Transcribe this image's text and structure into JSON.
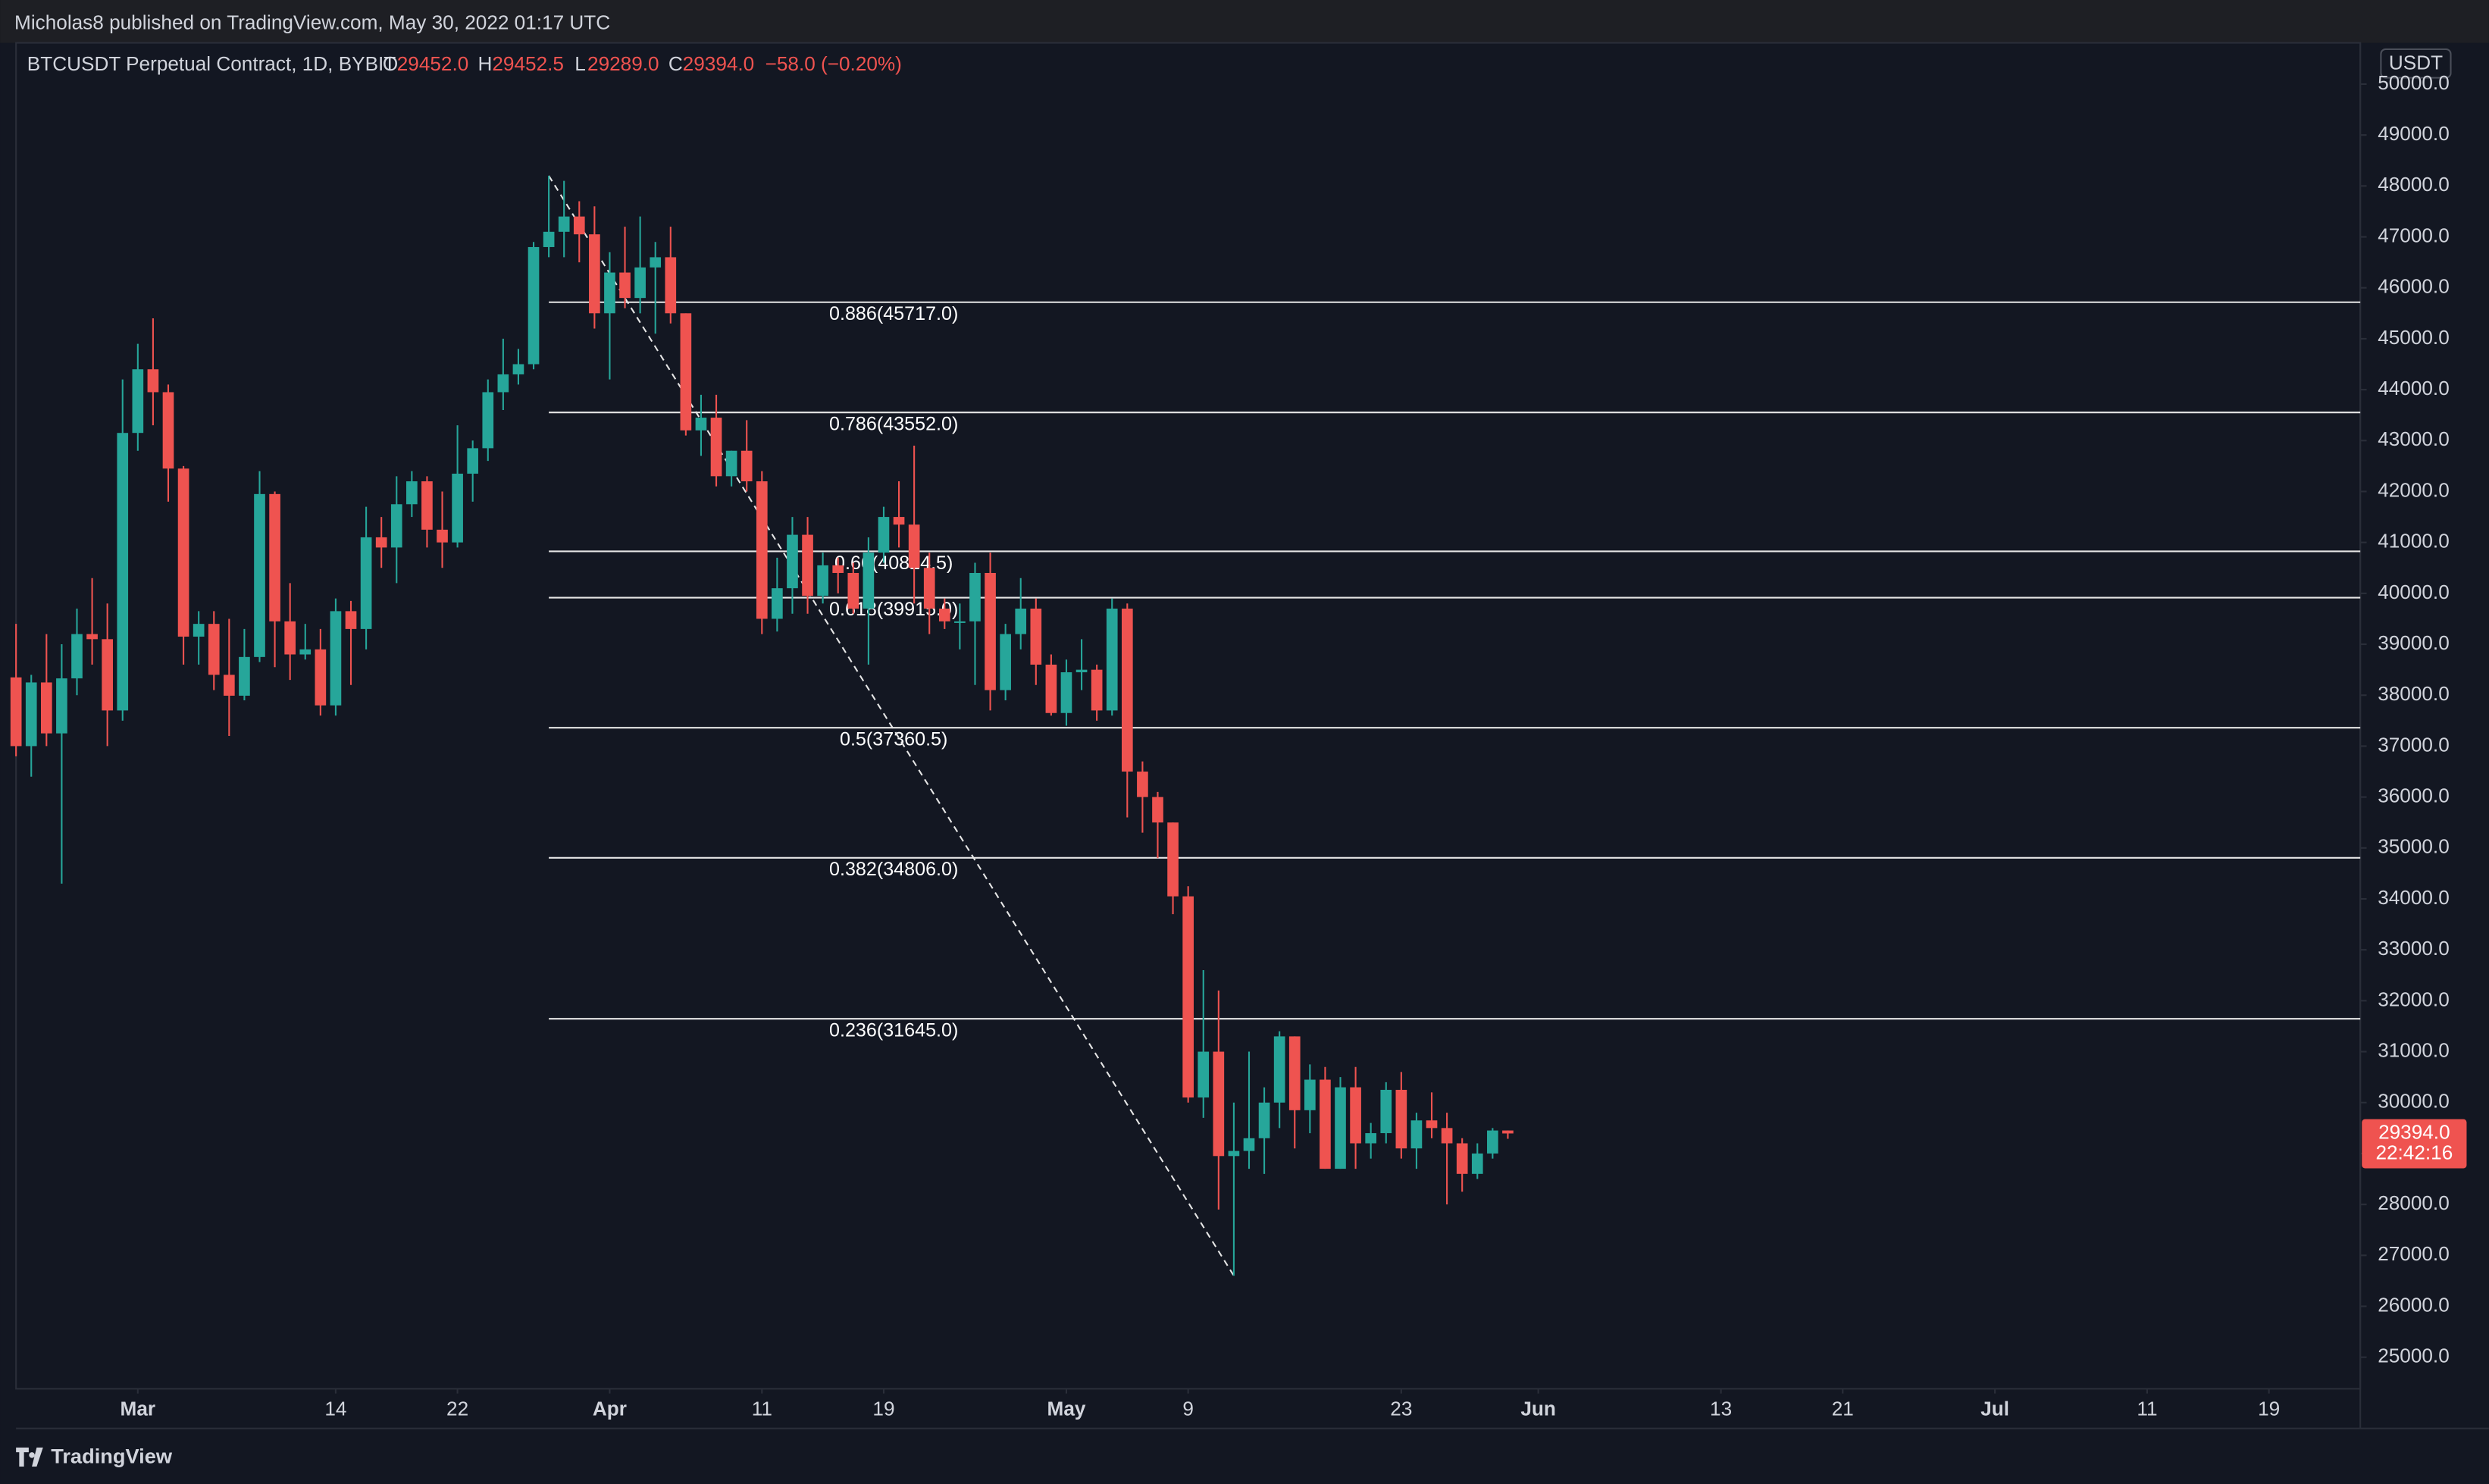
{
  "header": {
    "publisher": "Micholas8 published on TradingView.com, May 30, 2022 01:17 UTC"
  },
  "legend": {
    "symbol": "BTCUSDT Perpetual Contract, 1D, BYBIT",
    "open": {
      "label": "O",
      "value": "29452.0"
    },
    "high": {
      "label": "H",
      "value": "29452.5"
    },
    "low": {
      "label": "L",
      "value": "29289.0"
    },
    "close": {
      "label": "C",
      "value": "29394.0"
    },
    "change": "−58.0 (−0.20%)"
  },
  "footer": {
    "brand": "TradingView"
  },
  "chart_data": {
    "type": "candlestick",
    "currency": "USDT",
    "up_color": "#26a69a",
    "down_color": "#ef5350",
    "grid": false,
    "x": [
      "2022-02-21",
      "2022-02-22",
      "2022-02-23",
      "2022-02-24",
      "2022-02-25",
      "2022-02-26",
      "2022-02-27",
      "2022-02-28",
      "2022-03-01",
      "2022-03-02",
      "2022-03-03",
      "2022-03-04",
      "2022-03-05",
      "2022-03-06",
      "2022-03-07",
      "2022-03-08",
      "2022-03-09",
      "2022-03-10",
      "2022-03-11",
      "2022-03-12",
      "2022-03-13",
      "2022-03-14",
      "2022-03-15",
      "2022-03-16",
      "2022-03-17",
      "2022-03-18",
      "2022-03-19",
      "2022-03-20",
      "2022-03-21",
      "2022-03-22",
      "2022-03-23",
      "2022-03-24",
      "2022-03-25",
      "2022-03-26",
      "2022-03-27",
      "2022-03-28",
      "2022-03-29",
      "2022-03-30",
      "2022-03-31",
      "2022-04-01",
      "2022-04-02",
      "2022-04-03",
      "2022-04-04",
      "2022-04-05",
      "2022-04-06",
      "2022-04-07",
      "2022-04-08",
      "2022-04-09",
      "2022-04-10",
      "2022-04-11",
      "2022-04-12",
      "2022-04-13",
      "2022-04-14",
      "2022-04-15",
      "2022-04-16",
      "2022-04-17",
      "2022-04-18",
      "2022-04-19",
      "2022-04-20",
      "2022-04-21",
      "2022-04-22",
      "2022-04-23",
      "2022-04-24",
      "2022-04-25",
      "2022-04-26",
      "2022-04-27",
      "2022-04-28",
      "2022-04-29",
      "2022-04-30",
      "2022-05-01",
      "2022-05-02",
      "2022-05-03",
      "2022-05-04",
      "2022-05-05",
      "2022-05-06",
      "2022-05-07",
      "2022-05-08",
      "2022-05-09",
      "2022-05-10",
      "2022-05-11",
      "2022-05-12",
      "2022-05-13",
      "2022-05-14",
      "2022-05-15",
      "2022-05-16",
      "2022-05-17",
      "2022-05-18",
      "2022-05-19",
      "2022-05-20",
      "2022-05-21",
      "2022-05-22",
      "2022-05-23",
      "2022-05-24",
      "2022-05-25",
      "2022-05-26",
      "2022-05-27",
      "2022-05-28",
      "2022-05-29",
      "2022-05-30"
    ],
    "open": [
      38350,
      37000,
      38250,
      37250,
      38330,
      39200,
      39100,
      37700,
      43150,
      44400,
      43950,
      42450,
      39150,
      39400,
      38400,
      37990,
      38750,
      41950,
      39450,
      38800,
      38900,
      37800,
      39650,
      39300,
      41100,
      40900,
      41750,
      42200,
      41250,
      41000,
      42350,
      42850,
      43950,
      44300,
      44500,
      46800,
      47100,
      47400,
      47050,
      45500,
      46300,
      45800,
      46400,
      46600,
      45500,
      43200,
      43450,
      42300,
      42800,
      42200,
      39500,
      40100,
      41150,
      39950,
      40550,
      40400,
      39700,
      40800,
      41500,
      41350,
      40500,
      39700,
      39450,
      39450,
      40400,
      38100,
      39200,
      39700,
      38600,
      37650,
      38450,
      38500,
      37700,
      39700,
      36500,
      36000,
      35500,
      34050,
      30100,
      31000,
      28950,
      29050,
      29300,
      30000,
      31300,
      29850,
      30450,
      28700,
      30300,
      29200,
      29400,
      30250,
      29100,
      29650,
      29500,
      29200,
      28600,
      29000,
      29452
    ],
    "high": [
      39400,
      38400,
      39200,
      39000,
      39700,
      40300,
      39800,
      44200,
      44900,
      45400,
      44100,
      42500,
      39650,
      39650,
      39500,
      39300,
      42400,
      42000,
      40200,
      39400,
      39300,
      39900,
      39850,
      41700,
      41500,
      42300,
      42400,
      42300,
      42000,
      43300,
      43000,
      44200,
      45000,
      44800,
      46900,
      48200,
      48100,
      47700,
      47600,
      46700,
      47200,
      47400,
      46900,
      47200,
      45500,
      43900,
      43900,
      42800,
      43400,
      42400,
      40700,
      41500,
      41500,
      40800,
      40700,
      40600,
      41100,
      41700,
      42200,
      42900,
      40800,
      39900,
      39800,
      40600,
      40800,
      39400,
      40300,
      39900,
      38800,
      38700,
      39100,
      38600,
      39900,
      39800,
      36700,
      36100,
      35500,
      34250,
      32600,
      32200,
      30000,
      31000,
      30300,
      31400,
      31300,
      30750,
      30700,
      30500,
      30700,
      29600,
      30400,
      30600,
      29800,
      30200,
      29800,
      29300,
      29200,
      29500,
      29452.5
    ],
    "low": [
      36800,
      36400,
      37000,
      34300,
      38000,
      38600,
      37000,
      37500,
      42800,
      43300,
      41800,
      38600,
      38600,
      38100,
      37200,
      37900,
      38650,
      38550,
      38300,
      38700,
      37600,
      37600,
      38200,
      38900,
      40500,
      40200,
      41500,
      40900,
      40500,
      40900,
      41800,
      42600,
      43600,
      44100,
      44400,
      46600,
      46600,
      46500,
      45200,
      44200,
      45600,
      45500,
      45100,
      45300,
      43100,
      42700,
      42100,
      42100,
      42000,
      39200,
      39250,
      39600,
      39600,
      39800,
      40000,
      39600,
      38600,
      40600,
      40900,
      39800,
      39200,
      39300,
      38900,
      38200,
      37700,
      37900,
      38900,
      38200,
      37600,
      37400,
      38100,
      37500,
      37600,
      35600,
      35300,
      34800,
      33700,
      30000,
      29700,
      27900,
      26600,
      28700,
      28600,
      29500,
      29100,
      29400,
      28700,
      28700,
      28700,
      28900,
      29200,
      28900,
      28700,
      29300,
      28000,
      28250,
      28500,
      28900,
      29289
    ],
    "close": [
      37000,
      38250,
      37250,
      38330,
      39200,
      39100,
      37700,
      43150,
      44400,
      43950,
      42450,
      39150,
      39400,
      38400,
      37990,
      38750,
      41950,
      39450,
      38800,
      38900,
      37800,
      39650,
      39300,
      41100,
      40900,
      41750,
      42200,
      41250,
      41000,
      42350,
      42850,
      43950,
      44300,
      44500,
      46800,
      47100,
      47400,
      47050,
      45500,
      46300,
      45800,
      46400,
      46600,
      45500,
      43200,
      43450,
      42300,
      42800,
      42200,
      39500,
      40100,
      41150,
      39950,
      40550,
      40400,
      39700,
      40800,
      41500,
      41350,
      40500,
      39700,
      39450,
      39450,
      40400,
      38100,
      39200,
      39700,
      38600,
      37650,
      38450,
      38500,
      37700,
      39700,
      36500,
      36000,
      35500,
      34050,
      30100,
      31000,
      28950,
      29050,
      29300,
      30000,
      31300,
      29850,
      30450,
      28700,
      30300,
      29200,
      29400,
      30250,
      29100,
      29650,
      29500,
      29200,
      28600,
      29000,
      29452,
      29394
    ],
    "xlim": [
      "2022-02-21",
      "2022-07-25"
    ],
    "xticks": [
      {
        "value": "2022-03-01",
        "label": "Mar"
      },
      {
        "value": "2022-03-14",
        "label": "14"
      },
      {
        "value": "2022-03-22",
        "label": "22"
      },
      {
        "value": "2022-04-01",
        "label": "Apr"
      },
      {
        "value": "2022-04-11",
        "label": "11"
      },
      {
        "value": "2022-04-19",
        "label": "19"
      },
      {
        "value": "2022-05-01",
        "label": "May"
      },
      {
        "value": "2022-05-09",
        "label": "9"
      },
      {
        "value": "2022-05-23",
        "label": "23"
      },
      {
        "value": "2022-06-01",
        "label": "Jun"
      },
      {
        "value": "2022-06-13",
        "label": "13"
      },
      {
        "value": "2022-06-21",
        "label": "21"
      },
      {
        "value": "2022-07-01",
        "label": "Jul"
      },
      {
        "value": "2022-07-11",
        "label": "11"
      },
      {
        "value": "2022-07-19",
        "label": "19"
      }
    ],
    "ylim": [
      24380,
      50810
    ],
    "yticks": [
      {
        "value": 25000,
        "label": "25000.0"
      },
      {
        "value": 26000,
        "label": "26000.0"
      },
      {
        "value": 27000,
        "label": "27000.0"
      },
      {
        "value": 28000,
        "label": "28000.0"
      },
      {
        "value": 29000,
        "label": "29000.0"
      },
      {
        "value": 30000,
        "label": "30000.0"
      },
      {
        "value": 31000,
        "label": "31000.0"
      },
      {
        "value": 32000,
        "label": "32000.0"
      },
      {
        "value": 33000,
        "label": "33000.0"
      },
      {
        "value": 34000,
        "label": "34000.0"
      },
      {
        "value": 35000,
        "label": "35000.0"
      },
      {
        "value": 36000,
        "label": "36000.0"
      },
      {
        "value": 37000,
        "label": "37000.0"
      },
      {
        "value": 38000,
        "label": "38000.0"
      },
      {
        "value": 39000,
        "label": "39000.0"
      },
      {
        "value": 40000,
        "label": "40000.0"
      },
      {
        "value": 41000,
        "label": "41000.0"
      },
      {
        "value": 42000,
        "label": "42000.0"
      },
      {
        "value": 43000,
        "label": "43000.0"
      },
      {
        "value": 44000,
        "label": "44000.0"
      },
      {
        "value": 45000,
        "label": "45000.0"
      },
      {
        "value": 46000,
        "label": "46000.0"
      },
      {
        "value": 47000,
        "label": "47000.0"
      },
      {
        "value": 48000,
        "label": "48000.0"
      },
      {
        "value": 49000,
        "label": "49000.0"
      },
      {
        "value": 50000,
        "label": "50000.0"
      }
    ],
    "fib_levels": {
      "start": "2022-03-28",
      "values": [
        45717.0,
        43552.0,
        40824.5,
        39915.0,
        37360.5,
        34806.0,
        31645.0
      ],
      "value_labels": [
        "0.886(45717.0)",
        "0.786(43552.0)",
        "0.66(40824.5)",
        "0.618(39915.0)",
        "0.5(37360.5)",
        "0.382(34806.0)",
        "0.236(31645.0)"
      ]
    },
    "trend_line": {
      "x": [
        "2022-03-28",
        "2022-05-12"
      ],
      "y": [
        48200,
        26600
      ]
    },
    "last_price": {
      "value": 29394.0,
      "label": "29394.0",
      "countdown": "22:42:16"
    }
  }
}
